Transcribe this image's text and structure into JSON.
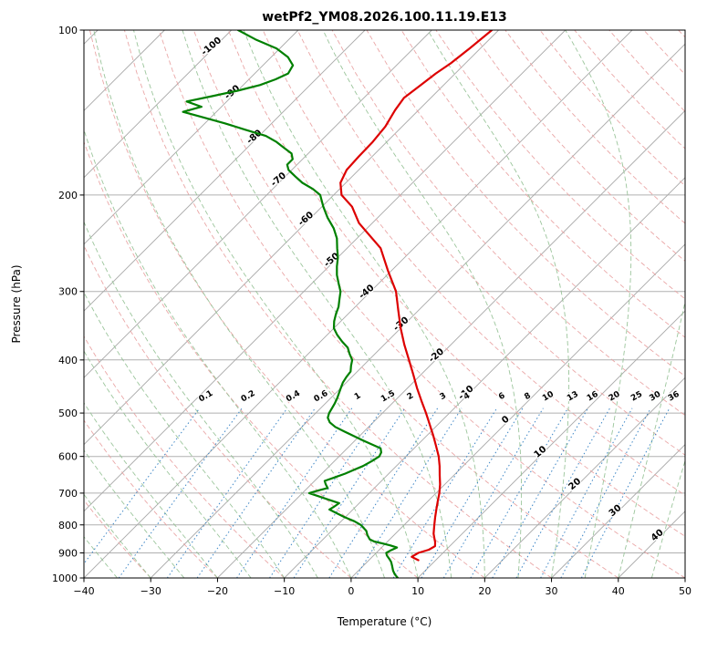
{
  "title": "wetPf2_YM08.2026.100.11.19.E13",
  "axes": {
    "xlabel": "Temperature (°C)",
    "ylabel": "Pressure (hPa)",
    "x_ticks": [
      -40,
      -30,
      -20,
      -10,
      0,
      10,
      20,
      30,
      40,
      50
    ],
    "x_tick_labels": [
      "−40",
      "−30",
      "−20",
      "−10",
      "0",
      "10",
      "20",
      "30",
      "40",
      "50"
    ],
    "p_ticks": [
      100,
      200,
      300,
      400,
      500,
      600,
      700,
      800,
      900,
      1000
    ],
    "p_tick_labels": [
      "100",
      "200",
      "300",
      "400",
      "500",
      "600",
      "700",
      "800",
      "900",
      "1000"
    ],
    "x_range": [
      -40,
      50
    ],
    "p_range": [
      100,
      1000
    ]
  },
  "chart_data": {
    "type": "line",
    "variant": "skew-t-log-p",
    "title": "wetPf2_YM08.2026.100.11.19.E13",
    "xlabel": "Temperature (°C)",
    "ylabel": "Pressure (hPa)",
    "skew_angle_deg": 45,
    "series": [
      {
        "name": "temperature",
        "label": "Temperature profile",
        "color": "#dd0000",
        "points": [
          [
            928,
            7.4
          ],
          [
            915,
            5.9
          ],
          [
            900,
            6.3
          ],
          [
            888,
            7.4
          ],
          [
            875,
            7.8
          ],
          [
            860,
            7.2
          ],
          [
            850,
            6.7
          ],
          [
            830,
            5.7
          ],
          [
            800,
            4.5
          ],
          [
            775,
            3.5
          ],
          [
            750,
            2.5
          ],
          [
            725,
            1.5
          ],
          [
            700,
            0.5
          ],
          [
            675,
            -0.7
          ],
          [
            650,
            -2.1
          ],
          [
            625,
            -3.5
          ],
          [
            600,
            -5.1
          ],
          [
            575,
            -7
          ],
          [
            550,
            -9
          ],
          [
            525,
            -11.2
          ],
          [
            500,
            -13.5
          ],
          [
            475,
            -16
          ],
          [
            450,
            -18.6
          ],
          [
            425,
            -21.2
          ],
          [
            400,
            -24
          ],
          [
            375,
            -27
          ],
          [
            350,
            -30
          ],
          [
            325,
            -33
          ],
          [
            300,
            -36.2
          ],
          [
            275,
            -40.5
          ],
          [
            250,
            -45
          ],
          [
            225,
            -52
          ],
          [
            210,
            -55.5
          ],
          [
            200,
            -58.8
          ],
          [
            190,
            -60.8
          ],
          [
            180,
            -61.8
          ],
          [
            170,
            -62
          ],
          [
            160,
            -62.1
          ],
          [
            150,
            -62.5
          ],
          [
            140,
            -63.5
          ],
          [
            133,
            -64
          ],
          [
            126,
            -63.4
          ],
          [
            120,
            -62.9
          ],
          [
            115,
            -62.2
          ],
          [
            108,
            -61.6
          ],
          [
            100,
            -61
          ]
        ]
      },
      {
        "name": "dewpoint",
        "label": "Dewpoint profile",
        "color": "#008000",
        "points": [
          [
            1000,
            7
          ],
          [
            985,
            6
          ],
          [
            970,
            5.2
          ],
          [
            950,
            4.3
          ],
          [
            935,
            3.6
          ],
          [
            925,
            3
          ],
          [
            910,
            2
          ],
          [
            900,
            1.5
          ],
          [
            890,
            1.8
          ],
          [
            880,
            2.3
          ],
          [
            872,
            1
          ],
          [
            865,
            -0.5
          ],
          [
            858,
            -2
          ],
          [
            850,
            -3
          ],
          [
            835,
            -4
          ],
          [
            820,
            -4.8
          ],
          [
            800,
            -6.5
          ],
          [
            788,
            -8
          ],
          [
            775,
            -10
          ],
          [
            762,
            -11.8
          ],
          [
            750,
            -13.5
          ],
          [
            740,
            -13.2
          ],
          [
            730,
            -13
          ],
          [
            720,
            -15
          ],
          [
            710,
            -17
          ],
          [
            700,
            -19
          ],
          [
            692,
            -18
          ],
          [
            685,
            -17
          ],
          [
            675,
            -17.8
          ],
          [
            665,
            -18.5
          ],
          [
            655,
            -17.5
          ],
          [
            645,
            -16.5
          ],
          [
            635,
            -15.8
          ],
          [
            625,
            -15
          ],
          [
            612,
            -14.4
          ],
          [
            600,
            -14
          ],
          [
            590,
            -14.3
          ],
          [
            580,
            -15
          ],
          [
            570,
            -17
          ],
          [
            560,
            -19
          ],
          [
            550,
            -21
          ],
          [
            540,
            -23
          ],
          [
            530,
            -25
          ],
          [
            520,
            -26.5
          ],
          [
            510,
            -27.5
          ],
          [
            500,
            -28
          ],
          [
            490,
            -28.3
          ],
          [
            480,
            -28.6
          ],
          [
            470,
            -29
          ],
          [
            460,
            -29.5
          ],
          [
            450,
            -30
          ],
          [
            440,
            -30.5
          ],
          [
            430,
            -30.8
          ],
          [
            420,
            -31
          ],
          [
            410,
            -31.8
          ],
          [
            400,
            -32.5
          ],
          [
            390,
            -33.8
          ],
          [
            380,
            -35
          ],
          [
            370,
            -36.8
          ],
          [
            360,
            -38.5
          ],
          [
            350,
            -40
          ],
          [
            340,
            -41
          ],
          [
            330,
            -41.8
          ],
          [
            320,
            -42.5
          ],
          [
            310,
            -43.5
          ],
          [
            300,
            -44.5
          ],
          [
            290,
            -46
          ],
          [
            280,
            -47.5
          ],
          [
            270,
            -48.8
          ],
          [
            260,
            -50
          ],
          [
            250,
            -51.5
          ],
          [
            240,
            -53
          ],
          [
            230,
            -55
          ],
          [
            220,
            -57.5
          ],
          [
            210,
            -59.8
          ],
          [
            200,
            -62
          ],
          [
            195,
            -64
          ],
          [
            190,
            -66.5
          ],
          [
            185,
            -68.5
          ],
          [
            180,
            -70.5
          ],
          [
            176,
            -71.5
          ],
          [
            172,
            -71.5
          ],
          [
            168,
            -72.5
          ],
          [
            164,
            -74.5
          ],
          [
            160,
            -76.5
          ],
          [
            156,
            -79
          ],
          [
            152,
            -83
          ],
          [
            148,
            -87
          ],
          [
            144,
            -91.5
          ],
          [
            141,
            -95
          ],
          [
            138,
            -93
          ],
          [
            135,
            -96
          ],
          [
            132,
            -93
          ],
          [
            129,
            -90
          ],
          [
            126,
            -87.5
          ],
          [
            123,
            -86
          ],
          [
            120,
            -85
          ],
          [
            116,
            -85.5
          ],
          [
            112,
            -87.5
          ],
          [
            108,
            -90.5
          ],
          [
            104,
            -95
          ],
          [
            100,
            -99
          ]
        ]
      }
    ],
    "background": {
      "isotherms_c": {
        "min": -160,
        "max": 50,
        "step": 10
      },
      "isotherm_labels": [
        {
          "t": -100,
          "p": 108
        },
        {
          "t": -90,
          "p": 131
        },
        {
          "t": -80,
          "p": 158
        },
        {
          "t": -70,
          "p": 189
        },
        {
          "t": -60,
          "p": 223
        },
        {
          "t": -50,
          "p": 265
        },
        {
          "t": -40,
          "p": 303
        },
        {
          "t": -30,
          "p": 347
        },
        {
          "t": -20,
          "p": 396
        },
        {
          "t": -10,
          "p": 463
        },
        {
          "t": 0,
          "p": 519
        },
        {
          "t": 10,
          "p": 594
        },
        {
          "t": 20,
          "p": 680
        },
        {
          "t": 30,
          "p": 760
        },
        {
          "t": 40,
          "p": 843
        }
      ],
      "dry_adiabats_k": {
        "min": 243.15,
        "max": 473.15,
        "step": 10
      },
      "moist_adiabats_c": {
        "min": -40,
        "max": 45,
        "step": 5
      },
      "mixing_ratios_g_kg": [
        0.1,
        0.2,
        0.4,
        0.6,
        1,
        1.5,
        2,
        3,
        4,
        6,
        8,
        10,
        13,
        16,
        20,
        25,
        30,
        36
      ],
      "mixing_ratio_labels": [
        "0.1",
        "0.2",
        "0.4",
        "0.6",
        "1",
        "1.5",
        "2",
        "3",
        "4",
        "6",
        "8",
        "10",
        "13",
        "16",
        "20",
        "25",
        "30",
        "36"
      ],
      "mixing_label_pressure": 470,
      "mixing_top_pressure": 490,
      "pressure_gridlines": [
        100,
        200,
        300,
        400,
        500,
        600,
        700,
        800,
        900,
        1000
      ]
    },
    "colors": {
      "isotherm": "#a8a8a8",
      "pressure_grid": "#b0b0b0",
      "dry_adiabat": "#e9a2a2",
      "moist_adiabat": "#96c296",
      "mixing_ratio": "#3d86c6",
      "label_negative": "#1f77b4",
      "label_zero": "#7f7f7f",
      "label_positive": "#d62728",
      "frame": "#000000"
    }
  }
}
